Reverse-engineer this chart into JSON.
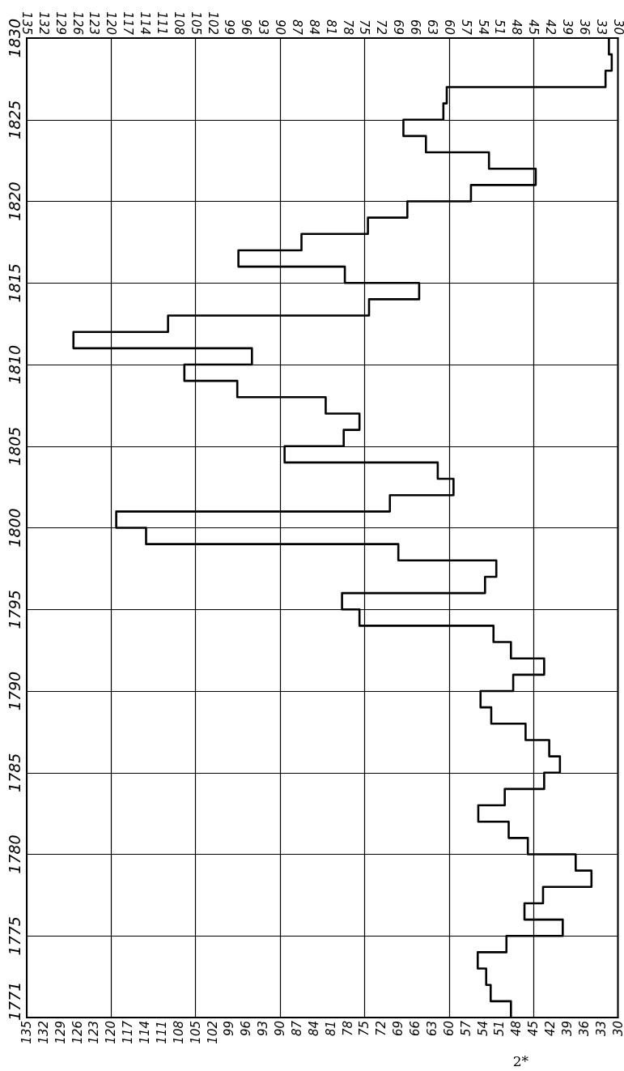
{
  "chart_data": {
    "type": "step",
    "orientation": "horizontal",
    "color": "#000000",
    "x": [
      1770,
      1771,
      1772,
      1773,
      1774,
      1775,
      1776,
      1777,
      1778,
      1779,
      1780,
      1781,
      1782,
      1783,
      1784,
      1785,
      1786,
      1787,
      1788,
      1789,
      1790,
      1791,
      1792,
      1793,
      1794,
      1795,
      1796,
      1797,
      1798,
      1799,
      1800,
      1801,
      1802,
      1803,
      1804,
      1805,
      1806,
      1807,
      1808,
      1809,
      1810,
      1811,
      1812,
      1813,
      1814,
      1815,
      1816,
      1817,
      1818,
      1819,
      1820,
      1821,
      1822,
      1823,
      1824,
      1825,
      1826,
      1827,
      1828,
      1829,
      1830
    ],
    "values": [
      49.0,
      52.6,
      53.4,
      54.9,
      49.8,
      39.8,
      46.6,
      43.3,
      34.7,
      37.5,
      46.0,
      49.4,
      54.8,
      50.1,
      43.1,
      40.3,
      42.2,
      46.4,
      52.5,
      54.4,
      48.6,
      43.1,
      49.0,
      52.1,
      75.9,
      79.0,
      53.6,
      51.6,
      69.0,
      113.8,
      119.1,
      70.5,
      59.2,
      62.0,
      89.2,
      78.7,
      75.9,
      81.9,
      97.6,
      107.0,
      95.0,
      126.7,
      109.9,
      74.2,
      65.3,
      78.5,
      97.4,
      86.2,
      74.4,
      67.4,
      56.1,
      44.6,
      52.9,
      64.1,
      68.1,
      61.0,
      60.4,
      32.2,
      31.1,
      31.6,
      31.6
    ],
    "xlim": [
      135,
      30
    ],
    "xticks": [
      135,
      132,
      129,
      126,
      123,
      120,
      117,
      114,
      111,
      108,
      105,
      102,
      99,
      96,
      93,
      90,
      87,
      84,
      81,
      78,
      75,
      72,
      69,
      66,
      63,
      60,
      57,
      54,
      51,
      48,
      45,
      42,
      39,
      36,
      33,
      30
    ],
    "x2lim": [
      135,
      30
    ],
    "x2ticks": [
      135,
      132,
      129,
      126,
      123,
      120,
      117,
      114,
      111,
      108,
      105,
      102,
      99,
      96,
      93,
      90,
      87,
      84,
      81,
      78,
      75,
      72,
      69,
      66,
      63,
      60,
      57,
      54,
      51,
      48,
      45,
      42,
      39,
      36,
      33,
      30
    ],
    "ylim": [
      1770,
      1830
    ],
    "yticks": [
      1771,
      1775,
      1780,
      1785,
      1790,
      1795,
      1800,
      1805,
      1810,
      1815,
      1820,
      1825,
      1830
    ],
    "grid": true,
    "annotations": [
      "2*"
    ]
  }
}
